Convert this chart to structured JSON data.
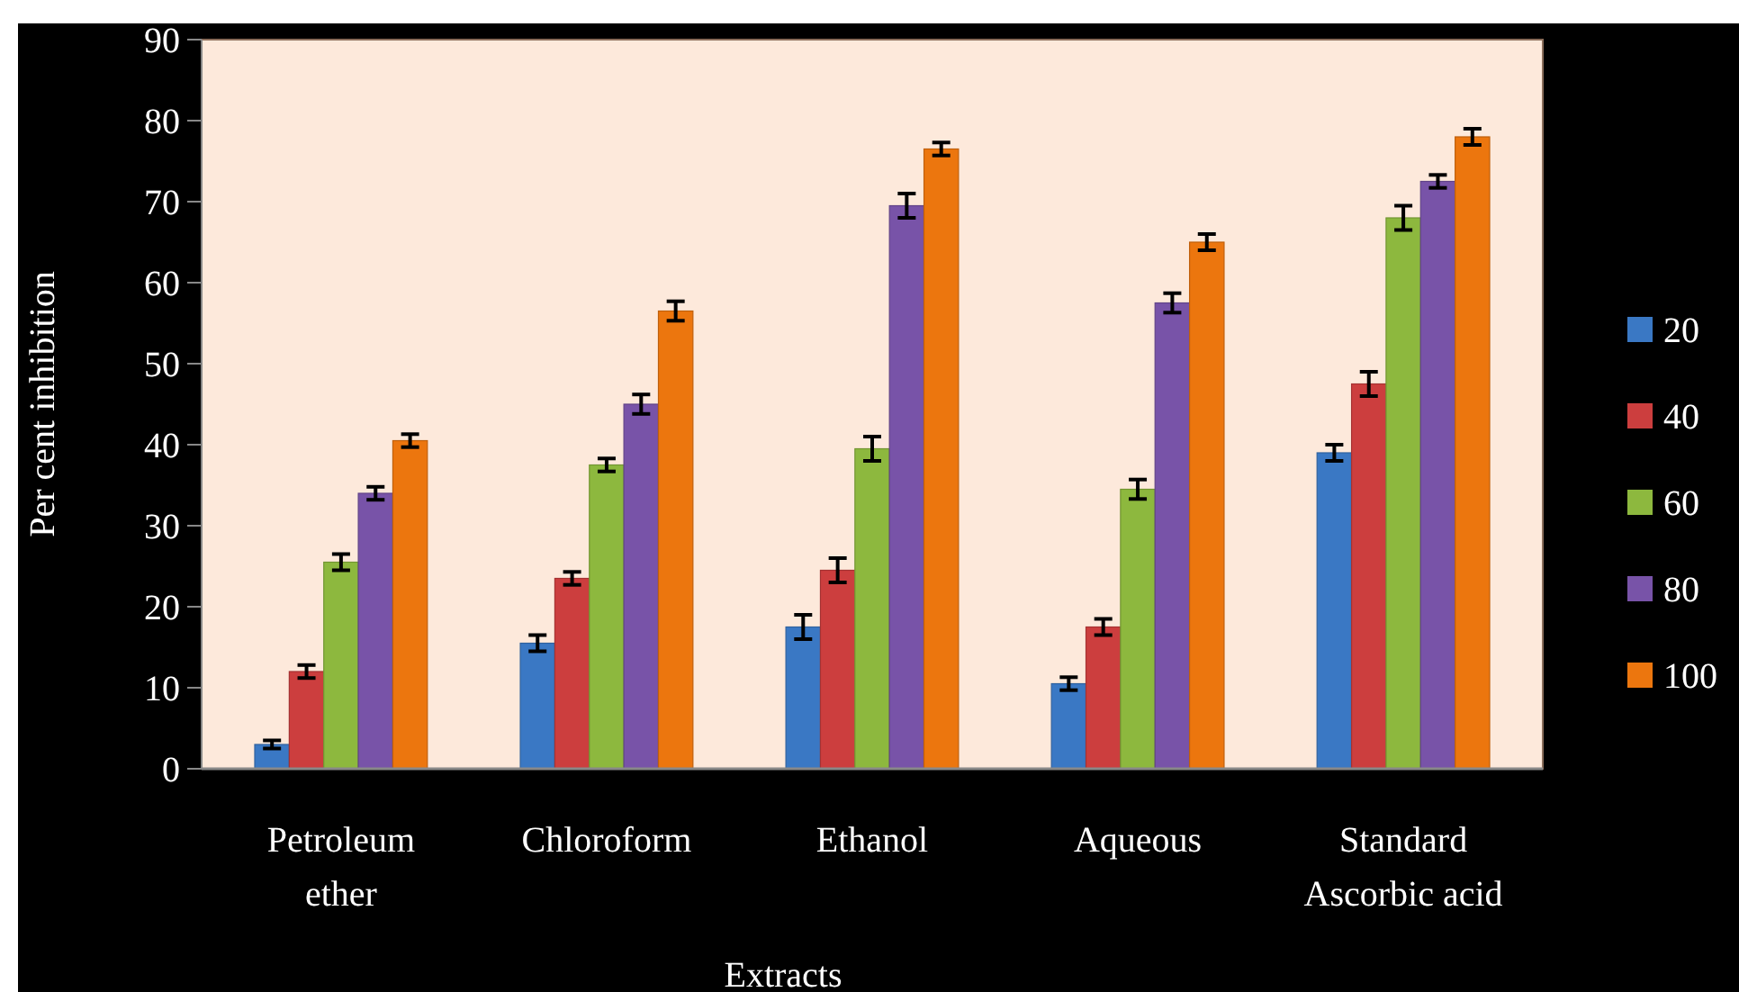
{
  "chart_data": {
    "type": "bar",
    "xlabel": "Extracts",
    "ylabel": "Per cent inhibition",
    "categories": [
      "Petroleum ether",
      "Chloroform",
      "Ethanol",
      "Aqueous",
      "Standard Ascorbic acid"
    ],
    "series": [
      {
        "name": "20",
        "color": "#3a78c4",
        "values": [
          3,
          15.5,
          17.5,
          10.5,
          39
        ],
        "errors": [
          0.5,
          1,
          1.5,
          0.8,
          1
        ]
      },
      {
        "name": "40",
        "color": "#cc3e3e",
        "values": [
          12,
          23.5,
          24.5,
          17.5,
          47.5
        ],
        "errors": [
          0.8,
          0.8,
          1.5,
          1,
          1.5
        ]
      },
      {
        "name": "60",
        "color": "#8db83e",
        "values": [
          25.5,
          37.5,
          39.5,
          34.5,
          68
        ],
        "errors": [
          1,
          0.8,
          1.5,
          1.2,
          1.5
        ]
      },
      {
        "name": "80",
        "color": "#7853a8",
        "values": [
          34,
          45,
          69.5,
          57.5,
          72.5
        ],
        "errors": [
          0.8,
          1.2,
          1.5,
          1.2,
          0.8
        ]
      },
      {
        "name": "100",
        "color": "#ec760e",
        "values": [
          40.5,
          56.5,
          76.5,
          65,
          78
        ],
        "errors": [
          0.8,
          1.2,
          0.8,
          1,
          1
        ]
      }
    ],
    "ylim": [
      0,
      90
    ],
    "yticks": [
      0,
      10,
      20,
      30,
      40,
      50,
      60,
      70,
      80,
      90
    ],
    "grid": false,
    "legend": "right"
  }
}
